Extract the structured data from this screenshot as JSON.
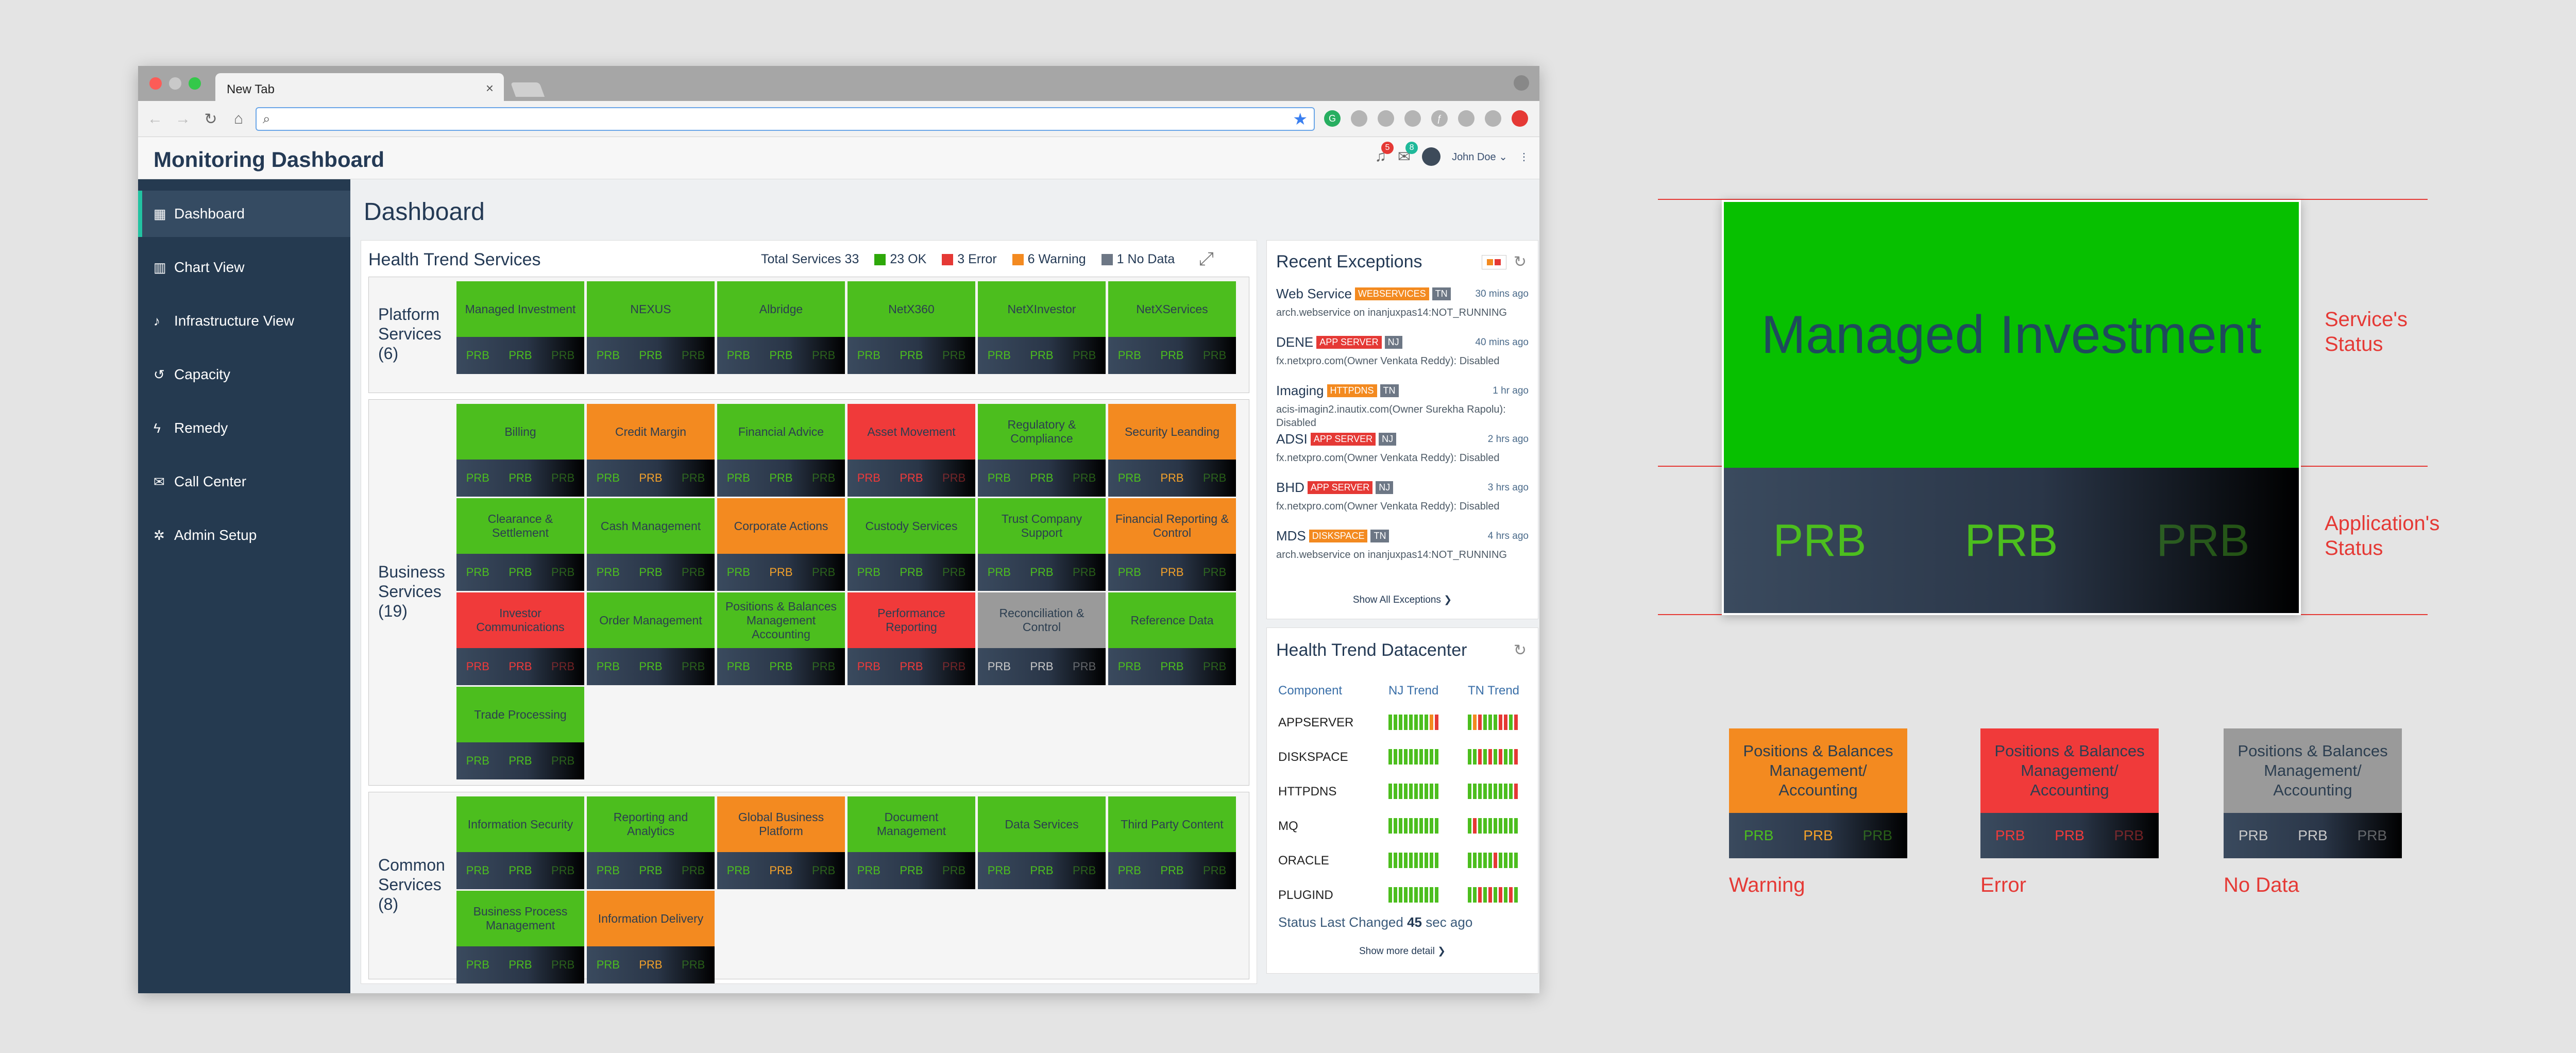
{
  "browser": {
    "tab_title": "New Tab",
    "tab_close": "×",
    "url_value": "",
    "nav_icons": [
      "back-icon",
      "forward-icon",
      "reload-icon",
      "home-icon"
    ]
  },
  "app": {
    "title": "Monitoring Dashboard",
    "notifications_count": "5",
    "messages_count": "8",
    "user_name": "John Doe ⌄",
    "more_icon": "⋮"
  },
  "sidebar": {
    "items": [
      {
        "label": "Dashboard",
        "icon": "dashboard-icon",
        "glyph": "▦"
      },
      {
        "label": "Chart View",
        "icon": "chart-icon",
        "glyph": "▥"
      },
      {
        "label": "Infrastructure View",
        "icon": "bell-icon",
        "glyph": "♪"
      },
      {
        "label": "Capacity",
        "icon": "history-icon",
        "glyph": "↺"
      },
      {
        "label": "Remedy",
        "icon": "bolt-icon",
        "glyph": "ϟ"
      },
      {
        "label": "Call Center",
        "icon": "chat-icon",
        "glyph": "✉"
      },
      {
        "label": "Admin Setup",
        "icon": "gear-icon",
        "glyph": "✲"
      }
    ]
  },
  "main": {
    "page_title": "Dashboard"
  },
  "colors": {
    "ok": "#4cbe1e",
    "warning": "#f38a20",
    "error": "#f03a3a",
    "nodata": "#9a9a9a",
    "prb_ok": "#4cbe1e",
    "prb_warn": "#f3a12a",
    "prb_err": "#f03a3a",
    "prb_nodata": "#c8c8c8"
  },
  "health": {
    "title": "Health Trend Services",
    "total": "Total Services 33",
    "legend": [
      {
        "label": "23 OK",
        "color": "#2ea80a"
      },
      {
        "label": "3 Error",
        "color": "#e53935"
      },
      {
        "label": "6 Warning",
        "color": "#f38a20"
      },
      {
        "label": "1 No Data",
        "color": "#6d7785"
      }
    ],
    "prb": "PRB",
    "groups": [
      {
        "label": "Platform Services (6)",
        "tiles": [
          {
            "name": "Managed Investment",
            "status": "ok",
            "apps": [
              "ok",
              "ok",
              "ok"
            ]
          },
          {
            "name": "NEXUS",
            "status": "ok",
            "apps": [
              "ok",
              "ok",
              "ok"
            ]
          },
          {
            "name": "Albridge",
            "status": "ok",
            "apps": [
              "ok",
              "ok",
              "ok"
            ]
          },
          {
            "name": "NetX360",
            "status": "ok",
            "apps": [
              "ok",
              "ok",
              "ok"
            ]
          },
          {
            "name": "NetXInvestor",
            "status": "ok",
            "apps": [
              "ok",
              "ok",
              "ok"
            ]
          },
          {
            "name": "NetXServices",
            "status": "ok",
            "apps": [
              "ok",
              "ok",
              "ok"
            ]
          }
        ]
      },
      {
        "label": "Business Services (19)",
        "tiles": [
          {
            "name": "Billing",
            "status": "ok",
            "apps": [
              "ok",
              "ok",
              "ok"
            ]
          },
          {
            "name": "Credit Margin",
            "status": "warning",
            "apps": [
              "ok",
              "warning",
              "ok"
            ]
          },
          {
            "name": "Financial Advice",
            "status": "ok",
            "apps": [
              "ok",
              "ok",
              "ok"
            ]
          },
          {
            "name": "Asset Movement",
            "status": "error",
            "apps": [
              "error",
              "error",
              "error"
            ]
          },
          {
            "name": "Regulatory & Compliance",
            "status": "ok",
            "apps": [
              "ok",
              "ok",
              "ok"
            ]
          },
          {
            "name": "Security Leanding",
            "status": "warning",
            "apps": [
              "ok",
              "warning",
              "ok"
            ]
          },
          {
            "name": "Clearance & Settlement",
            "status": "ok",
            "apps": [
              "ok",
              "ok",
              "ok"
            ]
          },
          {
            "name": "Cash Management",
            "status": "ok",
            "apps": [
              "ok",
              "ok",
              "ok"
            ]
          },
          {
            "name": "Corporate Actions",
            "status": "warning",
            "apps": [
              "ok",
              "warning",
              "ok"
            ]
          },
          {
            "name": "Custody Services",
            "status": "ok",
            "apps": [
              "ok",
              "ok",
              "ok"
            ]
          },
          {
            "name": "Trust Company Support",
            "status": "ok",
            "apps": [
              "ok",
              "ok",
              "ok"
            ]
          },
          {
            "name": "Financial Reporting & Control",
            "status": "warning",
            "apps": [
              "ok",
              "warning",
              "ok"
            ]
          },
          {
            "name": "Investor Communications",
            "status": "error",
            "apps": [
              "error",
              "error",
              "error"
            ]
          },
          {
            "name": "Order Management",
            "status": "ok",
            "apps": [
              "ok",
              "ok",
              "ok"
            ]
          },
          {
            "name": "Positions & Balances Management Accounting",
            "status": "ok",
            "apps": [
              "ok",
              "ok",
              "ok"
            ]
          },
          {
            "name": "Performance Reporting",
            "status": "error",
            "apps": [
              "error",
              "error",
              "error"
            ]
          },
          {
            "name": "Reconciliation & Control",
            "status": "nodata",
            "apps": [
              "nodata",
              "nodata",
              "nodata"
            ]
          },
          {
            "name": "Reference Data",
            "status": "ok",
            "apps": [
              "ok",
              "ok",
              "ok"
            ]
          },
          {
            "name": "Trade Processing",
            "status": "ok",
            "apps": [
              "ok",
              "ok",
              "ok"
            ]
          }
        ]
      },
      {
        "label": "Common Services (8)",
        "tiles": [
          {
            "name": "Information Security",
            "status": "ok",
            "apps": [
              "ok",
              "ok",
              "ok"
            ]
          },
          {
            "name": "Reporting and Analytics",
            "status": "ok",
            "apps": [
              "ok",
              "ok",
              "ok"
            ]
          },
          {
            "name": "Global Business Platform",
            "status": "warning",
            "apps": [
              "ok",
              "warning",
              "ok"
            ]
          },
          {
            "name": "Document Management",
            "status": "ok",
            "apps": [
              "ok",
              "ok",
              "ok"
            ]
          },
          {
            "name": "Data Services",
            "status": "ok",
            "apps": [
              "ok",
              "ok",
              "ok"
            ]
          },
          {
            "name": "Third Party Content",
            "status": "ok",
            "apps": [
              "ok",
              "ok",
              "ok"
            ]
          },
          {
            "name": "Business Process Management",
            "status": "ok",
            "apps": [
              "ok",
              "ok",
              "ok"
            ]
          },
          {
            "name": "Information Delivery",
            "status": "warning",
            "apps": [
              "ok",
              "warning",
              "ok"
            ]
          }
        ]
      }
    ]
  },
  "exceptions": {
    "title": "Recent Exceptions",
    "items": [
      {
        "service": "Web Service",
        "tag": "WEBSERVICES",
        "tag_color": "o",
        "dc": "TN",
        "time": "30 mins ago",
        "detail": "arch.webservice on inanjuxpas14:NOT_RUNNING"
      },
      {
        "service": "DENE",
        "tag": "APP SERVER",
        "tag_color": "r",
        "dc": "NJ",
        "time": "40 mins ago",
        "detail": "fx.netxpro.com(Owner Venkata Reddy): Disabled"
      },
      {
        "service": "Imaging",
        "tag": "HTTPDNS",
        "tag_color": "o",
        "dc": "TN",
        "time": "1 hr ago",
        "detail": "acis-imagin2.inautix.com(Owner Surekha Rapolu): Disabled"
      },
      {
        "service": "ADSI",
        "tag": "APP SERVER",
        "tag_color": "r",
        "dc": "NJ",
        "time": "2 hrs ago",
        "detail": "fx.netxpro.com(Owner Venkata Reddy): Disabled"
      },
      {
        "service": "BHD",
        "tag": "APP SERVER",
        "tag_color": "r",
        "dc": "NJ",
        "time": "3 hrs ago",
        "detail": "fx.netxpro.com(Owner Venkata Reddy): Disabled"
      },
      {
        "service": "MDS",
        "tag": "DISKSPACE",
        "tag_color": "o",
        "dc": "TN",
        "time": "4 hrs ago",
        "detail": "arch.webservice on inanjuxpas14:NOT_RUNNING"
      }
    ],
    "show_all": "Show All Exceptions ❯"
  },
  "datacenter": {
    "title": "Health Trend Datacenter",
    "col_component": "Component",
    "col_nj": "NJ Trend",
    "col_tn": "TN Trend",
    "rows": [
      {
        "name": "APPSERVER",
        "nj": "ggggggggwr",
        "tn": "gwrgggrrgr"
      },
      {
        "name": "DISKSPACE",
        "nj": "gggggggggg",
        "tn": "ggrgrgrggr"
      },
      {
        "name": "HTTPDNS",
        "nj": "gggggggggg",
        "tn": "gggggggggr"
      },
      {
        "name": "MQ",
        "nj": "gggggggggg",
        "tn": "grgggggggg"
      },
      {
        "name": "ORACLE",
        "nj": "gggggggggg",
        "tn": "gggggrgggg"
      },
      {
        "name": "PLUGIND",
        "nj": "gggggggggg",
        "tn": "ggrgrgrgrg"
      }
    ],
    "status_prefix": "Status Last Changed",
    "status_value": "45",
    "status_suffix": "sec ago",
    "show_more": "Show more detail ❯"
  },
  "annotation": {
    "big_tile_name": "Managed Investment",
    "service_status": "Service's Status",
    "app_status": "Application's Status",
    "examples": [
      {
        "name": "Positions & Balances Management/ Accounting",
        "status": "warning",
        "apps": [
          "ok",
          "warning",
          "ok"
        ],
        "label": "Warning"
      },
      {
        "name": "Positions & Balances Management/ Accounting",
        "status": "error",
        "apps": [
          "error",
          "error",
          "error"
        ],
        "label": "Error"
      },
      {
        "name": "Positions & Balances Management/ Accounting",
        "status": "nodata",
        "apps": [
          "nodata",
          "nodata",
          "nodata"
        ],
        "label": "No Data"
      }
    ]
  }
}
